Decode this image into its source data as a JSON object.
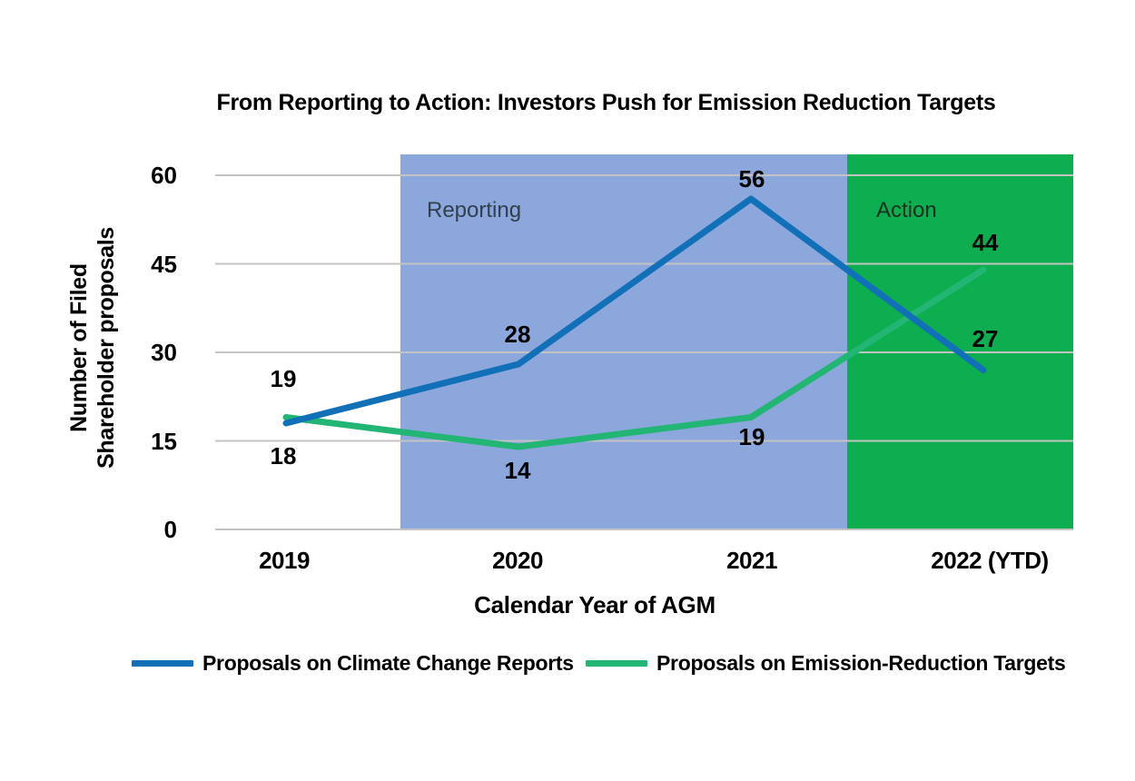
{
  "chart_data": {
    "type": "line",
    "title": "From Reporting to Action: Investors Push for Emission Reduction Targets",
    "xlabel": "Calendar Year of AGM",
    "ylabel": "Number of Filed Shareholder proposals",
    "ylabel_lines": [
      "Number of Filed",
      "Shareholder proposals"
    ],
    "categories": [
      "2019",
      "2020",
      "2021",
      "2022 (YTD)"
    ],
    "yticks_display": [
      "60",
      "45",
      "30",
      "15",
      "0"
    ],
    "ylim": [
      0,
      60
    ],
    "grid": true,
    "gridline_color": "#C3C3C3",
    "legend_position": "bottom",
    "series": [
      {
        "name": "Proposals on Climate Change Reports",
        "color": "#1270B8",
        "values": [
          18,
          28,
          56,
          27
        ]
      },
      {
        "name": "Proposals on Emission-Reduction Targets",
        "color": "#22B573",
        "values": [
          19,
          14,
          19,
          44
        ]
      }
    ],
    "regions": [
      {
        "label": "Reporting",
        "fill": "#8BA7DB",
        "label_color": "#323F4E",
        "covers": [
          "2020",
          "2021"
        ]
      },
      {
        "label": "Action",
        "fill": "#0CAE4F",
        "label_color": "#16301F",
        "covers": [
          "2022 (YTD)"
        ]
      }
    ]
  }
}
